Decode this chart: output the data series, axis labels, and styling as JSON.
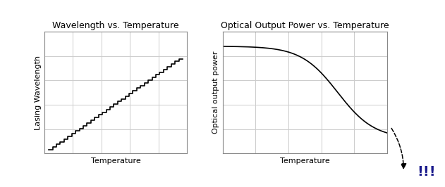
{
  "fig_width": 6.31,
  "fig_height": 2.66,
  "dpi": 100,
  "bg_color": "#ffffff",
  "left_title": "Wavelength vs. Temperature",
  "left_xlabel": "Temperature",
  "left_ylabel": "Lasing Wavelength",
  "left_grid_color": "#cccccc",
  "right_title": "Optical Output Power vs. Temperature",
  "right_xlabel": "Temperature",
  "right_ylabel": "Optical output power",
  "right_grid_color": "#cccccc",
  "exclaim_text": "!!!",
  "exclaim_color": "#1a1a8c",
  "exclaim_fontsize": 14,
  "line_color": "#000000",
  "line_width": 1.2,
  "staircase_steps": 35,
  "title_fontsize": 9,
  "label_fontsize": 8,
  "ylabel_fontsize": 8,
  "grid_nx": 5,
  "grid_ny": 5
}
